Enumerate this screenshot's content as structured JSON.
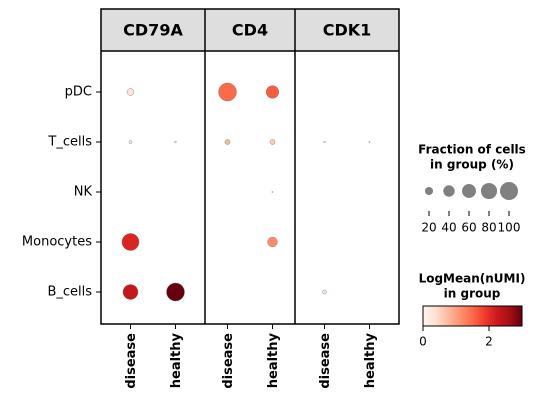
{
  "chart_data": {
    "type": "dotplot",
    "genes": [
      "CD79A",
      "CD4",
      "CDK1"
    ],
    "conditions": [
      "disease",
      "healthy"
    ],
    "rows": [
      "pDC",
      "T_cells",
      "NK",
      "Monocytes",
      "B_cells"
    ],
    "fraction": [
      [
        15,
        null,
        100,
        50,
        null,
        null
      ],
      [
        3,
        1,
        8,
        8,
        1,
        0.5
      ],
      [
        null,
        null,
        null,
        0.5,
        null,
        null
      ],
      [
        90,
        null,
        null,
        30,
        null,
        null
      ],
      [
        70,
        100,
        null,
        null,
        5,
        null
      ]
    ],
    "mean": [
      [
        0.3,
        null,
        1.5,
        1.6,
        null,
        null
      ],
      [
        0.2,
        0.1,
        0.8,
        0.6,
        0.1,
        0.1
      ],
      [
        null,
        null,
        null,
        0.1,
        null,
        null
      ],
      [
        2.1,
        null,
        null,
        1.2,
        null,
        null
      ],
      [
        2.3,
        3.0,
        null,
        null,
        0.3,
        null
      ]
    ],
    "size_legend": {
      "title": [
        "Fraction of cells",
        "in group (%)"
      ],
      "values": [
        20,
        40,
        60,
        80,
        100
      ]
    },
    "color_legend": {
      "title": [
        "LogMean(nUMI)",
        "in group"
      ],
      "clim": [
        0,
        3
      ],
      "ticks": [
        0,
        2
      ]
    }
  }
}
